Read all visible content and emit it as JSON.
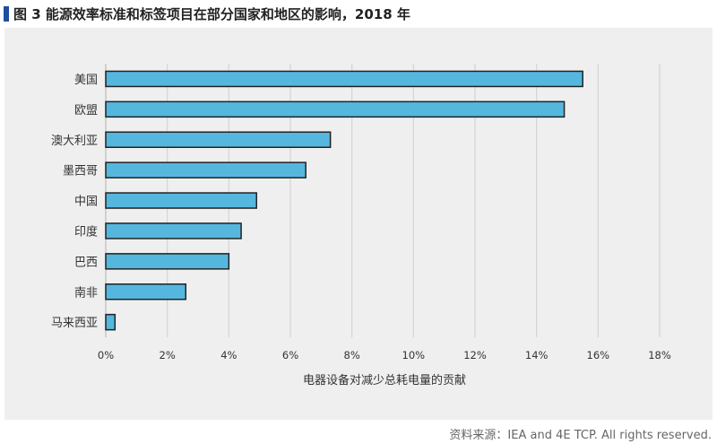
{
  "title": "图 3 能源效率标准和标签项目在部分国家和地区的影响，2018 年",
  "source": "资料来源：IEA and 4E TCP. All rights reserved.",
  "chart_data": {
    "type": "bar",
    "orientation": "horizontal",
    "categories": [
      "美国",
      "欧盟",
      "澳大利亚",
      "墨西哥",
      "中国",
      "印度",
      "巴西",
      "南非",
      "马来西亚"
    ],
    "values": [
      15.5,
      14.9,
      7.3,
      6.5,
      4.9,
      4.4,
      4.0,
      2.6,
      0.3
    ],
    "unit": "%",
    "xlabel": "电器设备对减少总耗电量的贡献",
    "ylabel": "",
    "xlim": [
      0,
      18
    ],
    "xticks": [
      "0%",
      "2%",
      "4%",
      "6%",
      "8%",
      "10%",
      "12%",
      "14%",
      "16%",
      "18%"
    ],
    "grid": "vertical",
    "bar_color": "#55b7de",
    "bar_edge_color": "#222222",
    "legend": "none"
  }
}
